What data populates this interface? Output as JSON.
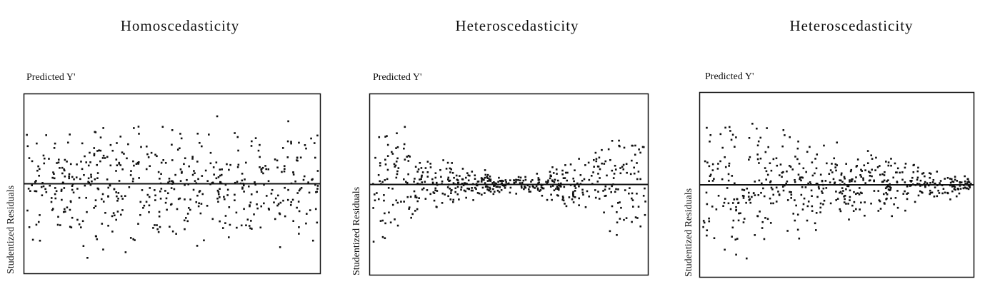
{
  "chart_data": [
    {
      "type": "scatter",
      "title": "Homoscedasticity",
      "xlabel": "Predicted Y'",
      "ylabel": "Studentized Residuals",
      "reference_line": 0,
      "pattern": "constant spread",
      "ylim": [
        -1,
        1
      ],
      "xlim": [
        0,
        1
      ],
      "grid": false
    },
    {
      "type": "scatter",
      "title": "Heteroscedasticity",
      "xlabel": "Predicted Y'",
      "ylabel": "Studentized Residuals",
      "reference_line": 0,
      "pattern": "wide at ends, narrow in middle",
      "ylim": [
        -1,
        1
      ],
      "xlim": [
        0,
        1
      ],
      "grid": false
    },
    {
      "type": "scatter",
      "title": "Heteroscedasticity",
      "xlabel": "Predicted Y'",
      "ylabel": "Studentized Residuals",
      "reference_line": 0,
      "pattern": "funnel narrowing to the right",
      "ylim": [
        -1,
        1
      ],
      "xlim": [
        0,
        1
      ],
      "grid": false
    }
  ]
}
